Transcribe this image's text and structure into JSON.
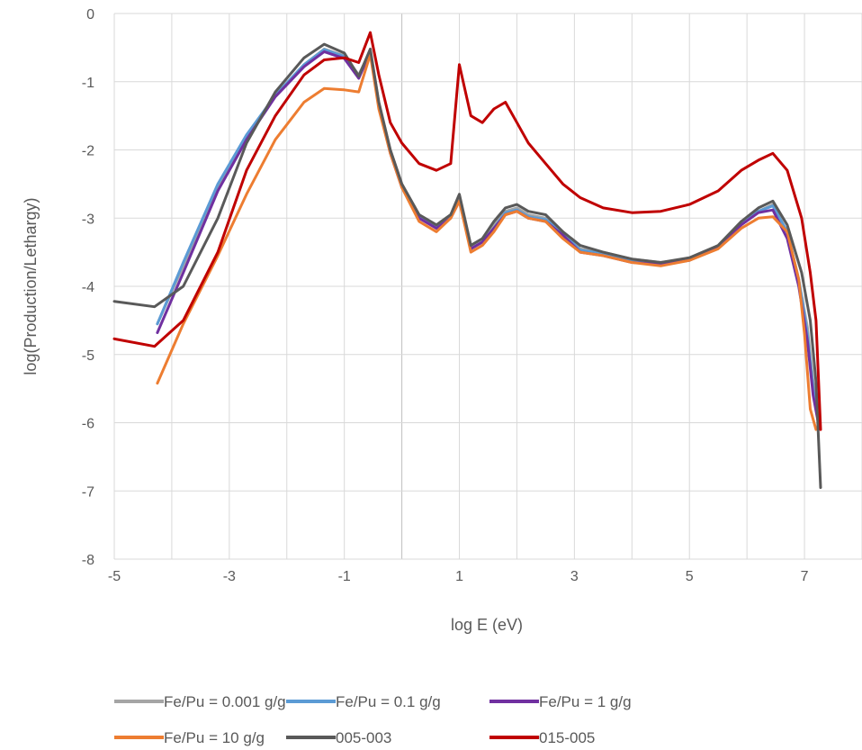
{
  "chart_data": {
    "type": "line",
    "title": "",
    "xlabel": "log E (eV)",
    "ylabel": "log(Production/Lethargy)",
    "xlim": [
      -5,
      8
    ],
    "ylim": [
      -8,
      0
    ],
    "xticks": [
      -5,
      -3,
      -1,
      1,
      3,
      5,
      7
    ],
    "yticks": [
      0,
      -1,
      -2,
      -3,
      -4,
      -5,
      -6,
      -7,
      -8
    ],
    "grid": "both",
    "legend": "bottom",
    "series": [
      {
        "name": "Fe/Pu = 0.001 g/g",
        "color": "#a5a5a5",
        "x": [
          -4.25,
          -3.8,
          -3.2,
          -2.7,
          -2.2,
          -1.7,
          -1.35,
          -1.0,
          -0.75,
          -0.55,
          -0.4,
          -0.2,
          0.0,
          0.3,
          0.6,
          0.85,
          1.0,
          1.2,
          1.4,
          1.6,
          1.8,
          2.0,
          2.2,
          2.5,
          2.8,
          3.1,
          3.5,
          4.0,
          4.5,
          5.0,
          5.5,
          5.9,
          6.2,
          6.45,
          6.7,
          6.9,
          7.05,
          7.15,
          7.25
        ],
        "y": [
          -4.55,
          -3.7,
          -2.55,
          -1.8,
          -1.2,
          -0.75,
          -0.52,
          -0.62,
          -0.9,
          -0.55,
          -1.3,
          -2.0,
          -2.5,
          -2.95,
          -3.1,
          -2.95,
          -2.7,
          -3.4,
          -3.3,
          -3.1,
          -2.9,
          -2.85,
          -2.95,
          -3.0,
          -3.2,
          -3.45,
          -3.5,
          -3.6,
          -3.65,
          -3.6,
          -3.4,
          -3.05,
          -2.9,
          -2.8,
          -3.2,
          -3.9,
          -4.6,
          -5.4,
          -6.0
        ]
      },
      {
        "name": "Fe/Pu = 0.1 g/g",
        "color": "#5b9bd5",
        "x": [
          -4.25,
          -3.8,
          -3.2,
          -2.7,
          -2.2,
          -1.7,
          -1.35,
          -1.0,
          -0.75,
          -0.55,
          -0.4,
          -0.2,
          0.0,
          0.3,
          0.6,
          0.85,
          1.0,
          1.2,
          1.4,
          1.6,
          1.8,
          2.0,
          2.2,
          2.5,
          2.8,
          3.1,
          3.5,
          4.0,
          4.5,
          5.0,
          5.5,
          5.9,
          6.2,
          6.45,
          6.7,
          6.9,
          7.05,
          7.15,
          7.25
        ],
        "y": [
          -4.55,
          -3.65,
          -2.5,
          -1.78,
          -1.2,
          -0.75,
          -0.53,
          -0.63,
          -0.92,
          -0.56,
          -1.32,
          -2.02,
          -2.52,
          -2.97,
          -3.12,
          -2.97,
          -2.75,
          -3.45,
          -3.35,
          -3.15,
          -2.92,
          -2.88,
          -2.98,
          -3.02,
          -3.22,
          -3.47,
          -3.52,
          -3.62,
          -3.67,
          -3.62,
          -3.42,
          -3.07,
          -2.9,
          -2.82,
          -3.2,
          -3.9,
          -4.7,
          -5.5,
          -6.0
        ]
      },
      {
        "name": "Fe/Pu = 1 g/g",
        "color": "#7030a0",
        "x": [
          -4.25,
          -3.8,
          -3.2,
          -2.7,
          -2.2,
          -1.7,
          -1.35,
          -1.0,
          -0.75,
          -0.55,
          -0.4,
          -0.2,
          0.0,
          0.3,
          0.6,
          0.85,
          1.0,
          1.2,
          1.4,
          1.6,
          1.8,
          2.0,
          2.2,
          2.5,
          2.8,
          3.1,
          3.5,
          4.0,
          4.5,
          5.0,
          5.5,
          5.9,
          6.2,
          6.45,
          6.7,
          6.9,
          7.05,
          7.15,
          7.25
        ],
        "y": [
          -4.68,
          -3.8,
          -2.6,
          -1.85,
          -1.22,
          -0.78,
          -0.56,
          -0.66,
          -0.95,
          -0.57,
          -1.35,
          -2.05,
          -2.55,
          -3.0,
          -3.15,
          -3.0,
          -2.75,
          -3.45,
          -3.35,
          -3.15,
          -2.95,
          -2.9,
          -3.0,
          -3.05,
          -3.25,
          -3.5,
          -3.55,
          -3.65,
          -3.68,
          -3.62,
          -3.42,
          -3.1,
          -2.92,
          -2.88,
          -3.3,
          -4.0,
          -4.8,
          -5.6,
          -6.05
        ]
      },
      {
        "name": "Fe/Pu = 10 g/g",
        "color": "#ed7d31",
        "x": [
          -4.25,
          -3.8,
          -3.2,
          -2.7,
          -2.2,
          -1.7,
          -1.35,
          -1.0,
          -0.75,
          -0.55,
          -0.4,
          -0.2,
          0.0,
          0.3,
          0.6,
          0.85,
          1.0,
          1.2,
          1.4,
          1.6,
          1.8,
          2.0,
          2.2,
          2.5,
          2.8,
          3.1,
          3.5,
          4.0,
          4.5,
          5.0,
          5.5,
          5.9,
          6.2,
          6.45,
          6.7,
          6.9,
          7.0,
          7.1,
          7.2
        ],
        "y": [
          -5.42,
          -4.55,
          -3.55,
          -2.65,
          -1.85,
          -1.3,
          -1.1,
          -1.12,
          -1.15,
          -0.6,
          -1.4,
          -2.05,
          -2.55,
          -3.05,
          -3.2,
          -3.0,
          -2.75,
          -3.5,
          -3.4,
          -3.2,
          -2.95,
          -2.9,
          -3.0,
          -3.05,
          -3.3,
          -3.5,
          -3.55,
          -3.65,
          -3.7,
          -3.62,
          -3.45,
          -3.15,
          -3.0,
          -2.98,
          -3.2,
          -3.9,
          -4.7,
          -5.8,
          -6.1
        ]
      },
      {
        "name": "005-003",
        "color": "#595959",
        "x": [
          -5.0,
          -4.3,
          -3.8,
          -3.2,
          -2.7,
          -2.2,
          -1.7,
          -1.35,
          -1.0,
          -0.75,
          -0.55,
          -0.4,
          -0.2,
          0.0,
          0.3,
          0.6,
          0.85,
          1.0,
          1.2,
          1.4,
          1.6,
          1.8,
          2.0,
          2.2,
          2.5,
          2.8,
          3.1,
          3.5,
          4.0,
          4.5,
          5.0,
          5.5,
          5.9,
          6.2,
          6.45,
          6.7,
          6.95,
          7.1,
          7.2,
          7.28
        ],
        "y": [
          -4.22,
          -4.3,
          -4.0,
          -3.0,
          -1.9,
          -1.15,
          -0.65,
          -0.45,
          -0.58,
          -0.92,
          -0.52,
          -1.3,
          -2.0,
          -2.5,
          -2.95,
          -3.1,
          -2.95,
          -2.65,
          -3.4,
          -3.3,
          -3.05,
          -2.85,
          -2.8,
          -2.9,
          -2.95,
          -3.2,
          -3.4,
          -3.5,
          -3.6,
          -3.65,
          -3.58,
          -3.4,
          -3.05,
          -2.85,
          -2.75,
          -3.1,
          -3.8,
          -4.5,
          -5.4,
          -6.95
        ]
      },
      {
        "name": "015-005",
        "color": "#c00000",
        "x": [
          -5.0,
          -4.3,
          -3.8,
          -3.2,
          -2.7,
          -2.2,
          -1.7,
          -1.35,
          -1.0,
          -0.75,
          -0.55,
          -0.4,
          -0.2,
          0.0,
          0.3,
          0.6,
          0.85,
          1.0,
          1.2,
          1.4,
          1.6,
          1.8,
          2.0,
          2.2,
          2.5,
          2.8,
          3.1,
          3.5,
          4.0,
          4.5,
          5.0,
          5.5,
          5.9,
          6.2,
          6.45,
          6.7,
          6.95,
          7.1,
          7.2,
          7.28
        ],
        "y": [
          -4.77,
          -4.88,
          -4.5,
          -3.5,
          -2.3,
          -1.5,
          -0.9,
          -0.68,
          -0.65,
          -0.72,
          -0.28,
          -0.9,
          -1.6,
          -1.9,
          -2.2,
          -2.3,
          -2.2,
          -0.75,
          -1.5,
          -1.6,
          -1.4,
          -1.3,
          -1.6,
          -1.9,
          -2.2,
          -2.5,
          -2.7,
          -2.85,
          -2.92,
          -2.9,
          -2.8,
          -2.6,
          -2.3,
          -2.15,
          -2.05,
          -2.3,
          -3.0,
          -3.8,
          -4.5,
          -6.1
        ]
      }
    ]
  }
}
